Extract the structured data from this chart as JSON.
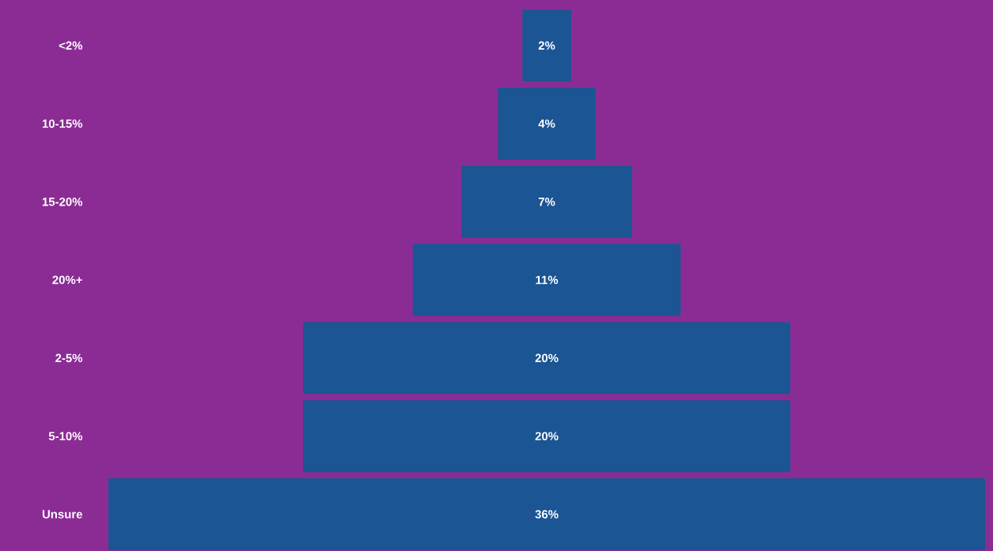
{
  "chart_data": {
    "type": "other",
    "categories": [
      "<2%",
      "10-15%",
      "15-20%",
      "20%+",
      "2-5%",
      "5-10%",
      "Unsure"
    ],
    "values": [
      2,
      4,
      7,
      11,
      20,
      20,
      36
    ],
    "value_labels": [
      "2%",
      "4%",
      "7%",
      "11%",
      "20%",
      "20%",
      "36%"
    ],
    "color": "#1b5593"
  }
}
